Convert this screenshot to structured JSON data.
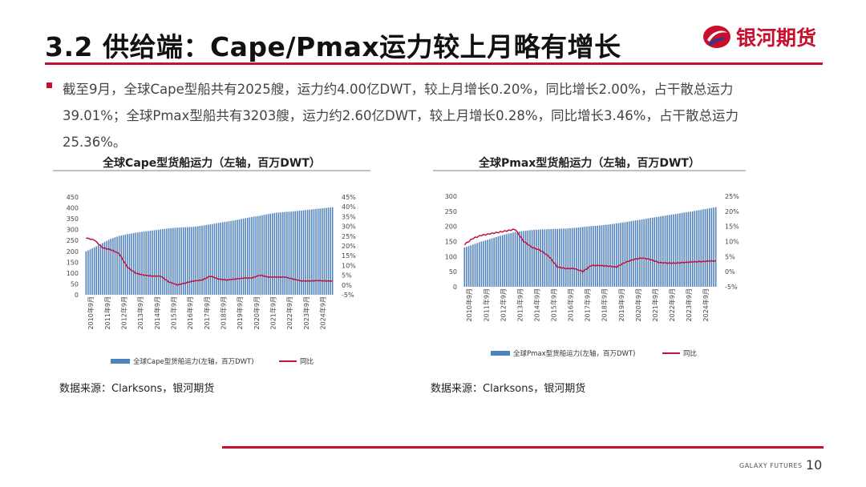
{
  "header": {
    "title": "3.2 供给端：Cape/Pmax运力较上月略有增长",
    "brand_name": "银河期货"
  },
  "bullet": {
    "text": "截至9月，全球Cape型船共有2025艘，运力约4.00亿DWT，较上月增长0.20%，同比增长2.00%，占干散总运力39.01%；全球Pmax型船共有3203艘，运力约2.60亿DWT，较上月增长0.28%，同比增长3.46%，占干散总运力25.36%。"
  },
  "colors": {
    "brand_red": "#c8102e",
    "bar_blue": "#4f81bd",
    "line_red": "#c0143c"
  },
  "chart_data": [
    {
      "type": "bar",
      "title": "全球Cape型货船运力（左轴，百万DWT）",
      "x_ticks": [
        "2010年9月",
        "2011年9月",
        "2012年9月",
        "2013年9月",
        "2014年9月",
        "2015年9月",
        "2016年9月",
        "2017年9月",
        "2018年9月",
        "2019年9月",
        "2020年9月",
        "2021年9月",
        "2022年9月",
        "2023年9月",
        "2024年9月"
      ],
      "y_ticks_left": [
        "450",
        "400",
        "350",
        "300",
        "250",
        "200",
        "150",
        "100",
        "50",
        "0"
      ],
      "y_ticks_right": [
        "45%",
        "40%",
        "35%",
        "30%",
        "25%",
        "20%",
        "15%",
        "10%",
        "5%",
        "0%",
        "-5%"
      ],
      "ylim_left": [
        0,
        450
      ],
      "ylim_right": [
        -5,
        45
      ],
      "legend_position": "bottom",
      "series": [
        {
          "name": "全球Cape型货船运力(左轴，百万DWT)",
          "type": "bar",
          "axis": "left",
          "values": [
            200,
            218,
            238,
            258,
            271,
            279,
            286,
            291,
            296,
            301,
            306,
            309,
            311,
            313,
            318,
            324,
            331,
            337,
            343,
            351,
            358,
            364,
            372,
            378,
            381,
            384,
            388,
            392,
            396,
            400
          ]
        },
        {
          "name": "同比",
          "type": "line",
          "axis": "right",
          "values": [
            24,
            23,
            19,
            18,
            16,
            9,
            6,
            5,
            4.5,
            4.5,
            1.5,
            0,
            1,
            2,
            2.5,
            4.5,
            3,
            2.5,
            3,
            3.5,
            3.5,
            5,
            4,
            4,
            4,
            3,
            2,
            2,
            2.2,
            2
          ]
        }
      ],
      "source": "数据来源：Clarksons，银河期货"
    },
    {
      "type": "bar",
      "title": "全球Pmax型货船运力（左轴，百万DWT）",
      "x_ticks": [
        "2010年9月",
        "2011年9月",
        "2012年9月",
        "2013年9月",
        "2014年9月",
        "2015年9月",
        "2016年9月",
        "2017年9月",
        "2018年9月",
        "2019年9月",
        "2020年9月",
        "2021年9月",
        "2022年9月",
        "2023年9月",
        "2024年9月"
      ],
      "y_ticks_left": [
        "300",
        "250",
        "200",
        "150",
        "100",
        "50",
        "0"
      ],
      "y_ticks_right": [
        "25%",
        "20%",
        "15%",
        "10%",
        "5%",
        "0%",
        "-5%"
      ],
      "ylim_left": [
        0,
        300
      ],
      "ylim_right": [
        -5,
        25
      ],
      "legend_position": "bottom",
      "series": [
        {
          "name": "全球Pmax型货船运力(左轴，百万DWT)",
          "type": "bar",
          "axis": "left",
          "values": [
            130,
            140,
            150,
            158,
            167,
            175,
            181,
            185,
            188,
            190,
            191,
            192,
            193,
            195,
            198,
            201,
            203,
            206,
            210,
            214,
            219,
            223,
            228,
            232,
            237,
            241,
            246,
            250,
            255,
            260
          ]
        },
        {
          "name": "同比",
          "type": "line",
          "axis": "right",
          "values": [
            9,
            11,
            12,
            12.5,
            13,
            13.5,
            14,
            10,
            8,
            7,
            5,
            1.5,
            1,
            1,
            0,
            2,
            2,
            1.8,
            1.5,
            3,
            4,
            4.5,
            4,
            3,
            2.8,
            2.8,
            3,
            3.2,
            3.3,
            3.5
          ]
        }
      ],
      "source": "数据来源：Clarksons，银河期货"
    }
  ],
  "footer": {
    "brand_en": "GALAXY FUTURES",
    "page_number": "10"
  }
}
